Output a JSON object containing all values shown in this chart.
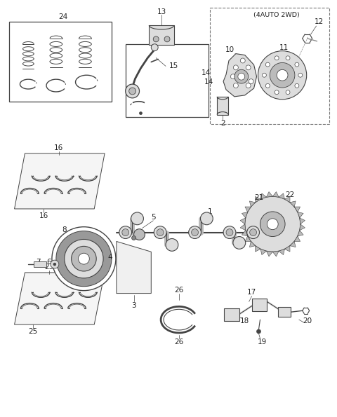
{
  "bg": "#ffffff",
  "fw": 4.8,
  "fh": 5.95,
  "dpi": 100,
  "gray1": "#444444",
  "gray2": "#888888",
  "gray3": "#bbbbbb",
  "gray4": "#dddddd",
  "fs": 7.5
}
